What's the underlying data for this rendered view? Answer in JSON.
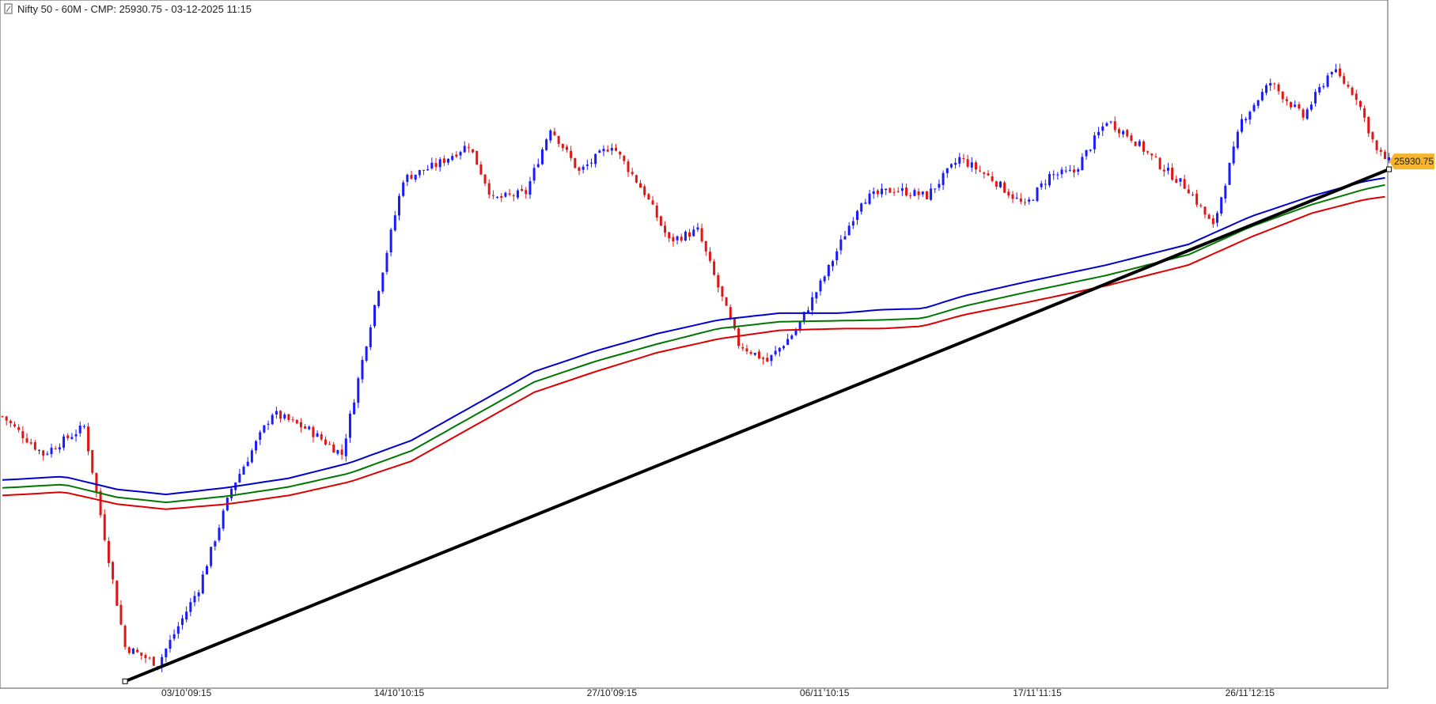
{
  "chart_data": {
    "type": "candlestick",
    "title": "Nifty 50 - 60M  -  CMP: 25930.75 - 03-12-2025 11:15",
    "x_tick_labels": [
      "03/10 09:15",
      "14/10 10:15",
      "27/10 09:15",
      "06/11 10:15",
      "17/11 11:15",
      "26/11 12:15"
    ],
    "last_price_label": "25930.75",
    "ylim": [
      24400,
      26400
    ],
    "grid": false,
    "colors": {
      "up": "#1a1aff",
      "down": "#e01515",
      "ma_fast": "#0000cc",
      "ma_mid": "#007700",
      "ma_slow": "#dd0000",
      "trendline": "#000000",
      "price_tag": "#f5b52e"
    },
    "trendline": {
      "start": [
        30,
        24420
      ],
      "end": [
        339,
        25908
      ]
    },
    "close_path": [
      [
        0,
        25190
      ],
      [
        10,
        25080
      ],
      [
        20,
        25160
      ],
      [
        30,
        24520
      ],
      [
        38,
        24470
      ],
      [
        48,
        24690
      ],
      [
        56,
        24980
      ],
      [
        66,
        25200
      ],
      [
        75,
        25150
      ],
      [
        83,
        25080
      ],
      [
        90,
        25460
      ],
      [
        98,
        25880
      ],
      [
        106,
        25920
      ],
      [
        114,
        25980
      ],
      [
        120,
        25820
      ],
      [
        128,
        25840
      ],
      [
        134,
        26030
      ],
      [
        141,
        25900
      ],
      [
        149,
        25980
      ],
      [
        157,
        25840
      ],
      [
        163,
        25700
      ],
      [
        170,
        25730
      ],
      [
        180,
        25400
      ],
      [
        187,
        25350
      ],
      [
        194,
        25440
      ],
      [
        202,
        25620
      ],
      [
        210,
        25820
      ],
      [
        218,
        25850
      ],
      [
        226,
        25830
      ],
      [
        234,
        25940
      ],
      [
        242,
        25880
      ],
      [
        250,
        25800
      ],
      [
        256,
        25890
      ],
      [
        262,
        25900
      ],
      [
        270,
        26050
      ],
      [
        276,
        26000
      ],
      [
        283,
        25920
      ],
      [
        290,
        25850
      ],
      [
        296,
        25740
      ],
      [
        303,
        26050
      ],
      [
        310,
        26160
      ],
      [
        318,
        26060
      ],
      [
        325,
        26200
      ],
      [
        331,
        26120
      ],
      [
        336,
        25960
      ],
      [
        339,
        25930
      ]
    ],
    "ma_fast_path": [
      [
        0,
        25005
      ],
      [
        15,
        25015
      ],
      [
        28,
        24978
      ],
      [
        40,
        24963
      ],
      [
        55,
        24983
      ],
      [
        70,
        25010
      ],
      [
        85,
        25055
      ],
      [
        100,
        25120
      ],
      [
        115,
        25220
      ],
      [
        130,
        25320
      ],
      [
        145,
        25380
      ],
      [
        160,
        25430
      ],
      [
        175,
        25470
      ],
      [
        190,
        25490
      ],
      [
        205,
        25490
      ],
      [
        215,
        25500
      ],
      [
        225,
        25503
      ],
      [
        235,
        25540
      ],
      [
        250,
        25580
      ],
      [
        270,
        25630
      ],
      [
        290,
        25690
      ],
      [
        305,
        25770
      ],
      [
        320,
        25830
      ],
      [
        333,
        25873
      ],
      [
        339,
        25885
      ]
    ],
    "ma_mid_path": [
      [
        0,
        24982
      ],
      [
        15,
        24992
      ],
      [
        28,
        24955
      ],
      [
        40,
        24940
      ],
      [
        55,
        24958
      ],
      [
        70,
        24985
      ],
      [
        85,
        25025
      ],
      [
        100,
        25090
      ],
      [
        115,
        25190
      ],
      [
        130,
        25290
      ],
      [
        145,
        25350
      ],
      [
        160,
        25400
      ],
      [
        175,
        25445
      ],
      [
        190,
        25465
      ],
      [
        205,
        25468
      ],
      [
        215,
        25470
      ],
      [
        225,
        25475
      ],
      [
        235,
        25510
      ],
      [
        250,
        25550
      ],
      [
        270,
        25600
      ],
      [
        290,
        25660
      ],
      [
        305,
        25740
      ],
      [
        320,
        25805
      ],
      [
        333,
        25850
      ],
      [
        339,
        25865
      ]
    ],
    "ma_slow_path": [
      [
        0,
        24960
      ],
      [
        15,
        24970
      ],
      [
        28,
        24935
      ],
      [
        40,
        24920
      ],
      [
        55,
        24935
      ],
      [
        70,
        24960
      ],
      [
        85,
        25000
      ],
      [
        100,
        25060
      ],
      [
        115,
        25160
      ],
      [
        130,
        25260
      ],
      [
        145,
        25320
      ],
      [
        160,
        25375
      ],
      [
        175,
        25415
      ],
      [
        190,
        25440
      ],
      [
        205,
        25445
      ],
      [
        215,
        25445
      ],
      [
        225,
        25452
      ],
      [
        235,
        25485
      ],
      [
        250,
        25520
      ],
      [
        270,
        25570
      ],
      [
        290,
        25630
      ],
      [
        305,
        25710
      ],
      [
        320,
        25780
      ],
      [
        333,
        25820
      ],
      [
        339,
        25830
      ]
    ]
  }
}
